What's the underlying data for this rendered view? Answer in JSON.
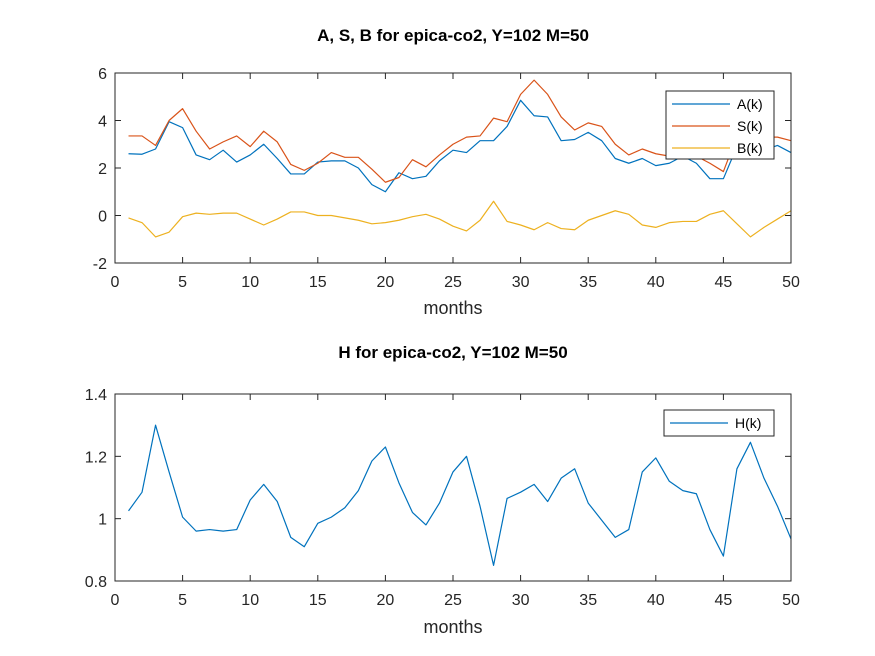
{
  "chart_data": [
    {
      "type": "line",
      "title": "A, S, B for epica-co2, Y=102 M=50",
      "xlabel": "months",
      "ylabel": "",
      "xlim": [
        0,
        50
      ],
      "ylim": [
        -2,
        6
      ],
      "xticks": [
        0,
        5,
        10,
        15,
        20,
        25,
        30,
        35,
        40,
        45,
        50
      ],
      "yticks": [
        -2,
        0,
        2,
        4,
        6
      ],
      "legend": "top-right",
      "x": [
        1,
        2,
        3,
        4,
        5,
        6,
        7,
        8,
        9,
        10,
        11,
        12,
        13,
        14,
        15,
        16,
        17,
        18,
        19,
        20,
        21,
        22,
        23,
        24,
        25,
        26,
        27,
        28,
        29,
        30,
        31,
        32,
        33,
        34,
        35,
        36,
        37,
        38,
        39,
        40,
        41,
        42,
        43,
        44,
        45,
        46,
        47,
        48,
        49,
        50
      ],
      "series": [
        {
          "name": "A(k)",
          "color": "#0072BD",
          "values": [
            2.6,
            2.58,
            2.8,
            3.95,
            3.7,
            2.55,
            2.35,
            2.75,
            2.25,
            2.55,
            3.0,
            2.4,
            1.75,
            1.75,
            2.25,
            2.3,
            2.3,
            2.0,
            1.3,
            1.0,
            1.8,
            1.55,
            1.65,
            2.3,
            2.75,
            2.65,
            3.15,
            3.15,
            3.75,
            4.85,
            4.2,
            4.15,
            3.15,
            3.2,
            3.5,
            3.15,
            2.4,
            2.2,
            2.4,
            2.1,
            2.2,
            2.5,
            2.2,
            1.55,
            1.55,
            2.9,
            3.05,
            2.75,
            2.95,
            2.65
          ]
        },
        {
          "name": "S(k)",
          "color": "#D95319",
          "values": [
            3.35,
            3.35,
            2.95,
            4.0,
            4.5,
            3.55,
            2.8,
            3.1,
            3.35,
            2.9,
            3.55,
            3.1,
            2.15,
            1.9,
            2.2,
            2.65,
            2.45,
            2.45,
            1.95,
            1.4,
            1.6,
            2.35,
            2.05,
            2.55,
            3.0,
            3.3,
            3.35,
            4.1,
            3.95,
            5.1,
            5.7,
            5.1,
            4.15,
            3.6,
            3.9,
            3.75,
            3.0,
            2.55,
            2.8,
            2.6,
            2.5,
            2.55,
            2.5,
            2.2,
            1.85,
            3.35,
            3.8,
            3.3,
            3.3,
            3.15
          ]
        },
        {
          "name": "B(k)",
          "color": "#EDB120",
          "values": [
            -0.1,
            -0.3,
            -0.9,
            -0.7,
            -0.05,
            0.1,
            0.05,
            0.1,
            0.1,
            -0.15,
            -0.4,
            -0.15,
            0.15,
            0.15,
            0.0,
            0.0,
            -0.1,
            -0.2,
            -0.35,
            -0.3,
            -0.2,
            -0.05,
            0.05,
            -0.15,
            -0.45,
            -0.65,
            -0.2,
            0.6,
            -0.25,
            -0.4,
            -0.6,
            -0.3,
            -0.55,
            -0.6,
            -0.2,
            0.0,
            0.2,
            0.05,
            -0.4,
            -0.5,
            -0.3,
            -0.25,
            -0.25,
            0.05,
            0.2,
            -0.35,
            -0.9,
            -0.5,
            -0.15,
            0.2
          ]
        }
      ]
    },
    {
      "type": "line",
      "title": "H for epica-co2, Y=102 M=50",
      "xlabel": "months",
      "ylabel": "",
      "xlim": [
        0,
        50
      ],
      "ylim": [
        0.8,
        1.4
      ],
      "xticks": [
        0,
        5,
        10,
        15,
        20,
        25,
        30,
        35,
        40,
        45,
        50
      ],
      "yticks": [
        0.8,
        1.0,
        1.2,
        1.4
      ],
      "ytick_labels": [
        "0.8",
        "1",
        "1.2",
        "1.4"
      ],
      "legend": "top-right",
      "x": [
        1,
        2,
        3,
        4,
        5,
        6,
        7,
        8,
        9,
        10,
        11,
        12,
        13,
        14,
        15,
        16,
        17,
        18,
        19,
        20,
        21,
        22,
        23,
        24,
        25,
        26,
        27,
        28,
        29,
        30,
        31,
        32,
        33,
        34,
        35,
        36,
        37,
        38,
        39,
        40,
        41,
        42,
        43,
        44,
        45,
        46,
        47,
        48,
        49,
        50
      ],
      "series": [
        {
          "name": "H(k)",
          "color": "#0072BD",
          "values": [
            1.025,
            1.085,
            1.3,
            1.15,
            1.005,
            0.96,
            0.965,
            0.96,
            0.965,
            1.06,
            1.11,
            1.055,
            0.94,
            0.91,
            0.985,
            1.005,
            1.035,
            1.09,
            1.185,
            1.23,
            1.115,
            1.02,
            0.98,
            1.05,
            1.15,
            1.2,
            1.04,
            0.85,
            1.065,
            1.085,
            1.11,
            1.055,
            1.13,
            1.16,
            1.05,
            0.995,
            0.94,
            0.965,
            1.15,
            1.195,
            1.12,
            1.09,
            1.08,
            0.965,
            0.88,
            1.16,
            1.245,
            1.13,
            1.04,
            0.935
          ]
        }
      ]
    }
  ]
}
